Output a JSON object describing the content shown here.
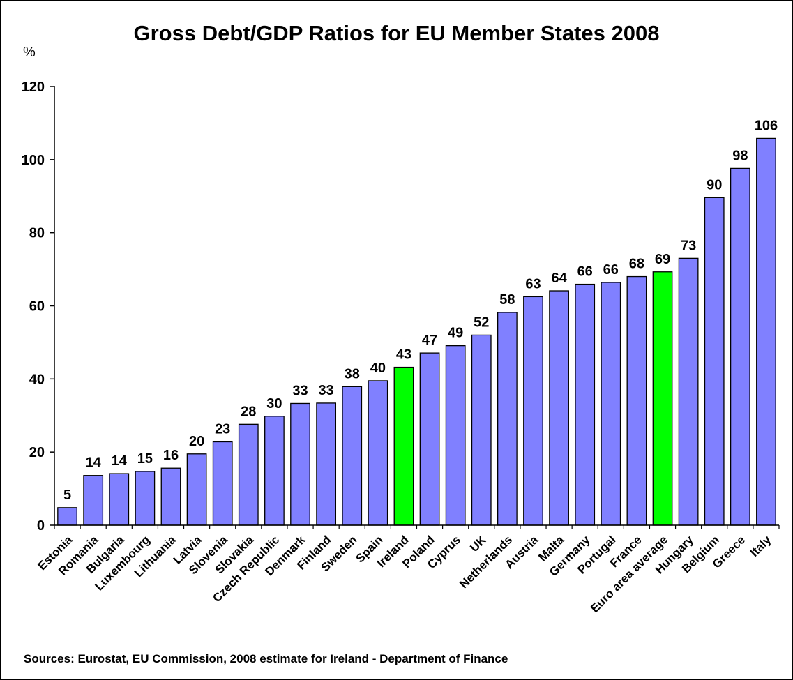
{
  "chart_data": {
    "type": "bar",
    "title": "Gross Debt/GDP Ratios for EU Member States 2008",
    "ylabel": "%",
    "xlabel": "",
    "ylim": [
      0,
      120
    ],
    "yticks": [
      0,
      20,
      40,
      60,
      80,
      100,
      120
    ],
    "grid": false,
    "categories": [
      "Estonia",
      "Romania",
      "Bulgaria",
      "Luxembourg",
      "Lithuania",
      "Latvia",
      "Slovenia",
      "Slovakia",
      "Czech Republic",
      "Denmark",
      "Finland",
      "Sweden",
      "Spain",
      "Ireland",
      "Poland",
      "Cyprus",
      "UK",
      "Netherlands",
      "Austria",
      "Malta",
      "Germany",
      "Portugal",
      "France",
      "Euro area average",
      "Hungary",
      "Belgium",
      "Greece",
      "Italy"
    ],
    "values": [
      4.8,
      13.6,
      14.1,
      14.7,
      15.6,
      19.5,
      22.8,
      27.6,
      29.8,
      33.3,
      33.4,
      37.9,
      39.5,
      43.2,
      47.1,
      49.1,
      52.0,
      58.2,
      62.5,
      64.1,
      65.9,
      66.4,
      68.0,
      69.3,
      73.0,
      89.6,
      97.6,
      105.8
    ],
    "data_labels": [
      "5",
      "14",
      "14",
      "15",
      "16",
      "20",
      "23",
      "28",
      "30",
      "33",
      "33",
      "38",
      "40",
      "43",
      "47",
      "49",
      "52",
      "58",
      "63",
      "64",
      "66",
      "66",
      "68",
      "69",
      "73",
      "90",
      "98",
      "106"
    ],
    "highlighted": [
      "Ireland",
      "Euro area average"
    ],
    "colors": {
      "bar": "#8080ff",
      "highlight": "#00ff00",
      "outline": "#000000"
    },
    "source_note": "Sources: Eurostat, EU Commission, 2008 estimate for Ireland - Department of Finance"
  }
}
